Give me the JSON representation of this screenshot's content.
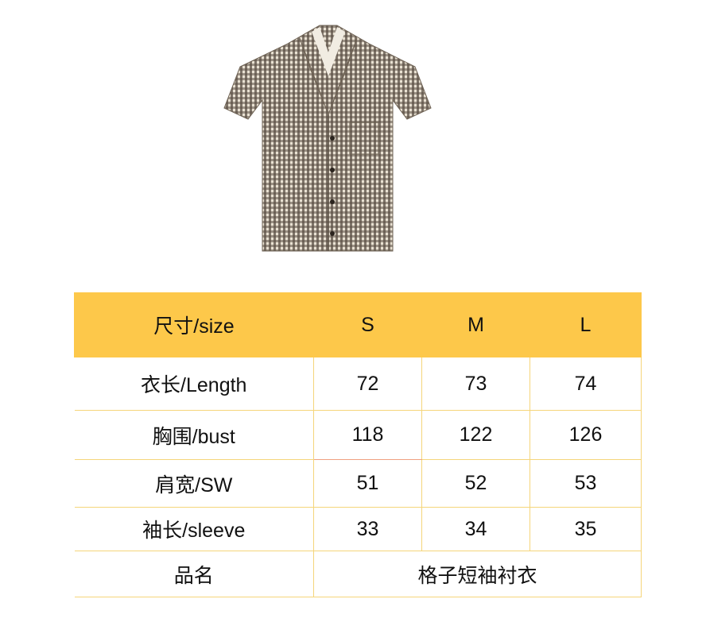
{
  "product_image": {
    "alt_icon": "gingham-short-sleeve-shirt"
  },
  "colors": {
    "header_bg": "#fdc84a",
    "grid": "#f5d57a"
  },
  "size_table": {
    "header": [
      "尺寸/size",
      "S",
      "M",
      "L"
    ],
    "rows": [
      {
        "label": "衣长/Length",
        "values": [
          "72",
          "73",
          "74"
        ]
      },
      {
        "label": "胸围/bust",
        "values": [
          "118",
          "122",
          "126"
        ]
      },
      {
        "label": "肩宽/SW",
        "values": [
          "51",
          "52",
          "53"
        ]
      },
      {
        "label": "袖长/sleeve",
        "values": [
          "33",
          "34",
          "35"
        ]
      }
    ],
    "product_name_label": "品名",
    "product_name": "格子短袖衬衣"
  }
}
